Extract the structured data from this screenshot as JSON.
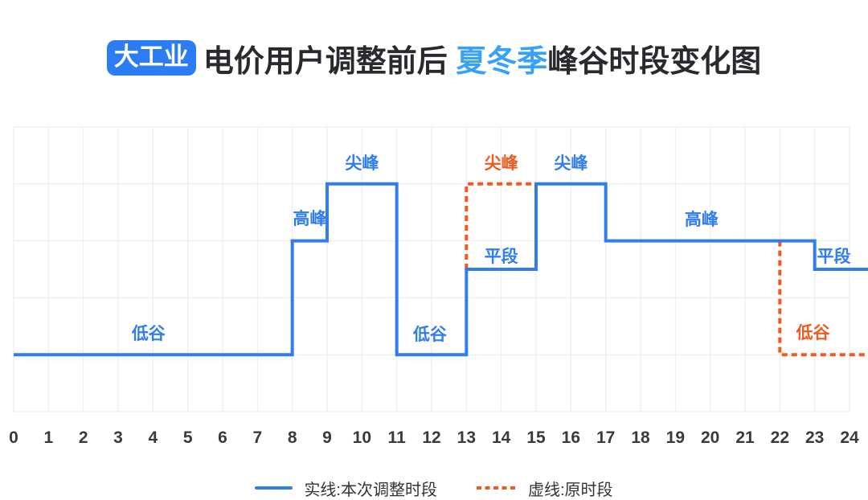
{
  "title": {
    "badge": "大工业",
    "prefix": "电价用户调整前后 ",
    "highlight": "夏冬季",
    "suffix": "峰谷时段变化图"
  },
  "colors": {
    "bg": "#FFFFFF",
    "badge_bg": "#2B7CF5",
    "badge_text": "#FFFFFF",
    "title_text": "#2A2A2E",
    "highlight": "#38A0F8",
    "solid": "#2F7DF0",
    "dashed": "#F15A1F",
    "grid": "#EAEAEA",
    "axis_text": "#3A3A3C",
    "legend_text": "#333333"
  },
  "chart_data": {
    "type": "step-line",
    "title": "大工业电价用户调整前后夏冬季峰谷时段变化图",
    "x_unit": "hour",
    "x_range": [
      0,
      24
    ],
    "x_ticks": [
      0,
      1,
      2,
      3,
      4,
      5,
      6,
      7,
      8,
      9,
      10,
      11,
      12,
      13,
      14,
      15,
      16,
      17,
      18,
      19,
      20,
      21,
      22,
      23,
      24
    ],
    "grid": true,
    "legend_position": "bottom",
    "level_values": {
      "低谷": 1,
      "平段": 2.5,
      "高峰": 3,
      "尖峰": 4
    },
    "series": [
      {
        "name": "实线:本次调整时段",
        "style": "solid",
        "color_ref": "solid",
        "segments": [
          {
            "from": 0,
            "to": 8,
            "level": "低谷"
          },
          {
            "from": 8,
            "to": 9,
            "level": "高峰"
          },
          {
            "from": 9,
            "to": 11,
            "level": "尖峰"
          },
          {
            "from": 11,
            "to": 13,
            "level": "低谷"
          },
          {
            "from": 13,
            "to": 15,
            "level": "平段"
          },
          {
            "from": 15,
            "to": 17,
            "level": "尖峰"
          },
          {
            "from": 17,
            "to": 23,
            "level": "高峰"
          },
          {
            "from": 23,
            "to": 24,
            "level": "平段"
          }
        ]
      },
      {
        "name": "虚线:原时段",
        "style": "dashed",
        "color_ref": "dashed",
        "segments": [
          {
            "from": 13,
            "to": 15,
            "level": "尖峰"
          },
          {
            "from": 22,
            "to": 24,
            "level": "低谷"
          }
        ]
      }
    ],
    "labels": [
      {
        "text": "低谷",
        "x_hour": 3.87,
        "level": "低谷",
        "dy": -27,
        "series": "solid"
      },
      {
        "text": "高峰",
        "x_hour": 8.5,
        "level": "高峰",
        "dy": -29,
        "series": "solid"
      },
      {
        "text": "尖峰",
        "x_hour": 10,
        "level": "尖峰",
        "dy": -27,
        "series": "solid"
      },
      {
        "text": "低谷",
        "x_hour": 11.95,
        "level": "低谷",
        "dy": -26,
        "series": "solid"
      },
      {
        "text": "尖峰",
        "x_hour": 14,
        "level": "尖峰",
        "dy": -27,
        "series": "dashed"
      },
      {
        "text": "平段",
        "x_hour": 14,
        "level": "平段",
        "dy": -17,
        "series": "solid"
      },
      {
        "text": "尖峰",
        "x_hour": 16,
        "level": "尖峰",
        "dy": -27,
        "series": "solid"
      },
      {
        "text": "高峰",
        "x_hour": 19.75,
        "level": "高峰",
        "dy": -28,
        "series": "solid"
      },
      {
        "text": "平段",
        "x_hour": 23.55,
        "level": "平段",
        "dy": -17,
        "series": "solid"
      },
      {
        "text": "低谷",
        "x_hour": 22.95,
        "level": "低谷",
        "dy": -28,
        "series": "dashed"
      }
    ]
  },
  "legend": [
    {
      "label": "实线:本次调整时段",
      "style": "solid"
    },
    {
      "label": "虚线:原时段",
      "style": "dashed"
    }
  ]
}
